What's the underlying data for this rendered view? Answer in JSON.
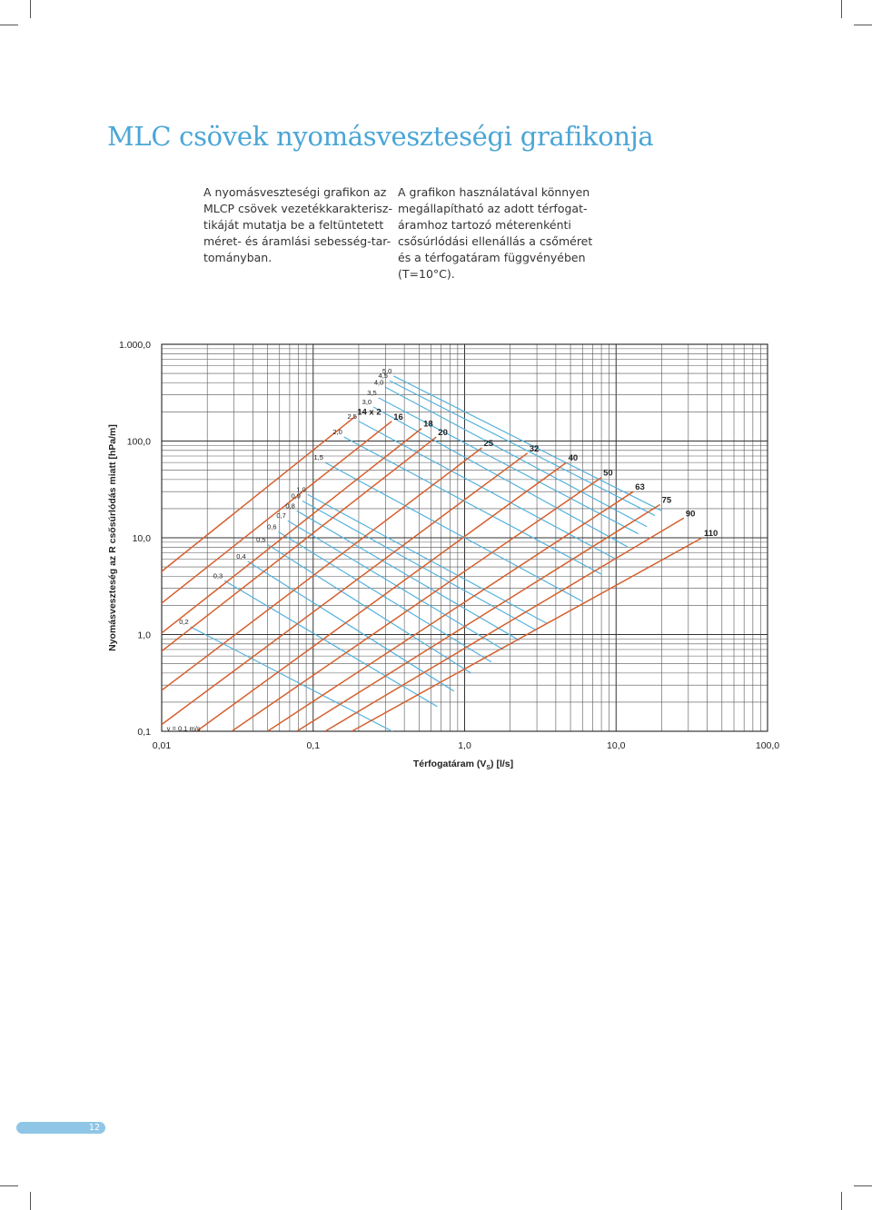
{
  "page": {
    "title": "MLC csövek nyomásveszteségi grafikonja",
    "intro_left": [
      "A nyomásveszteségi grafikon az",
      "MLCP csövek vezetékkarakterisz-",
      "tikáját mutatja be a feltüntetett",
      "méret- és áramlási sebesség-tar-",
      "tományban."
    ],
    "intro_right": [
      "A grafikon használatával könnyen",
      "megállapítható az adott térfogat-",
      "áramhoz tartozó méterenkénti",
      "csősúrlódási ellenállás a csőméret",
      "és a térfogatáram függvényében",
      "(T=10°C)."
    ],
    "page_number": "12"
  },
  "chart_data": {
    "type": "line",
    "title": "",
    "xlabel": "Térfogatáram (V",
    "xlabel_sub": "S",
    "xlabel_end": ") [l/s]",
    "ylabel": "Nyomásveszteség az R csősúrlódás miatt [hPa/m]",
    "x_scale": "log",
    "y_scale": "log",
    "xlim": [
      0.01,
      100
    ],
    "ylim": [
      0.1,
      1000
    ],
    "grid": true,
    "x_ticks": [
      0.01,
      0.1,
      1,
      10,
      100
    ],
    "x_tick_labels": [
      "0,01",
      "0,1",
      "1,0",
      "10,0",
      "100,0"
    ],
    "y_ticks": [
      0.1,
      1,
      10,
      100,
      1000
    ],
    "y_tick_labels": [
      "0,1",
      "1,0",
      "10,0",
      "100,0",
      "1.000,0"
    ],
    "pipe_color": "#d4602e",
    "velocity_color": "#55b2dd",
    "pipe_series": [
      {
        "name": "14 x 2",
        "points": [
          [
            0.00048,
            0.1
          ],
          [
            0.19,
            180
          ]
        ]
      },
      {
        "name": "16",
        "points": [
          [
            0.00085,
            0.1
          ],
          [
            0.33,
            160
          ]
        ]
      },
      {
        "name": "18",
        "points": [
          [
            0.0015,
            0.1
          ],
          [
            0.52,
            135
          ]
        ]
      },
      {
        "name": "20",
        "points": [
          [
            0.0021,
            0.1
          ],
          [
            0.65,
            110
          ]
        ]
      },
      {
        "name": "25",
        "points": [
          [
            0.0044,
            0.1
          ],
          [
            1.3,
            85
          ]
        ]
      },
      {
        "name": "32",
        "points": [
          [
            0.0087,
            0.1
          ],
          [
            2.6,
            75
          ]
        ]
      },
      {
        "name": "40",
        "points": [
          [
            0.017,
            0.1
          ],
          [
            4.7,
            60
          ]
        ]
      },
      {
        "name": "50",
        "points": [
          [
            0.029,
            0.1
          ],
          [
            8.0,
            42
          ]
        ]
      },
      {
        "name": "63",
        "points": [
          [
            0.05,
            0.1
          ],
          [
            13,
            30
          ]
        ]
      },
      {
        "name": "75",
        "points": [
          [
            0.078,
            0.1
          ],
          [
            19.5,
            22
          ]
        ]
      },
      {
        "name": "90",
        "points": [
          [
            0.12,
            0.1
          ],
          [
            28,
            16
          ]
        ]
      },
      {
        "name": "110",
        "points": [
          [
            0.18,
            0.1
          ],
          [
            37,
            10
          ]
        ]
      }
    ],
    "velocity_series": [
      {
        "name": "0,1",
        "points": [
          [
            0.0185,
            0.095
          ],
          [
            0.18,
            0.035
          ]
        ]
      },
      {
        "name": "0,2",
        "points": [
          [
            0.0155,
            1.2
          ],
          [
            0.4,
            0.086
          ]
        ]
      },
      {
        "name": "0,3",
        "points": [
          [
            0.026,
            3.6
          ],
          [
            0.66,
            0.18
          ]
        ]
      },
      {
        "name": "0,4",
        "points": [
          [
            0.037,
            5.7
          ],
          [
            0.85,
            0.26
          ]
        ]
      },
      {
        "name": "0,5",
        "points": [
          [
            0.05,
            8.5
          ],
          [
            1.1,
            0.4
          ]
        ]
      },
      {
        "name": "0,6",
        "points": [
          [
            0.059,
            11.5
          ],
          [
            1.5,
            0.52
          ]
        ]
      },
      {
        "name": "0,7",
        "points": [
          [
            0.068,
            15
          ],
          [
            1.8,
            0.7
          ]
        ]
      },
      {
        "name": "0,8",
        "points": [
          [
            0.078,
            19
          ],
          [
            2.3,
            0.87
          ]
        ]
      },
      {
        "name": "0,9",
        "points": [
          [
            0.085,
            24
          ],
          [
            3.0,
            1.1
          ]
        ]
      },
      {
        "name": "1,0",
        "points": [
          [
            0.092,
            28
          ],
          [
            3.5,
            1.3
          ]
        ]
      },
      {
        "name": "1,5",
        "points": [
          [
            0.12,
            60
          ],
          [
            6.0,
            2.2
          ]
        ]
      },
      {
        "name": "2,0",
        "points": [
          [
            0.16,
            110
          ],
          [
            8.0,
            4.2
          ]
        ]
      },
      {
        "name": "2,5",
        "points": [
          [
            0.2,
            160
          ],
          [
            10,
            6
          ]
        ]
      },
      {
        "name": "3,0",
        "points": [
          [
            0.25,
            225
          ],
          [
            12,
            8
          ]
        ]
      },
      {
        "name": "3,5",
        "points": [
          [
            0.27,
            280
          ],
          [
            14,
            11
          ]
        ]
      },
      {
        "name": "4,0",
        "points": [
          [
            0.3,
            360
          ],
          [
            16,
            13
          ]
        ]
      },
      {
        "name": "4,5",
        "points": [
          [
            0.32,
            420
          ],
          [
            18,
            17
          ]
        ]
      },
      {
        "name": "5,0",
        "points": [
          [
            0.34,
            470
          ],
          [
            20,
            19
          ]
        ]
      }
    ],
    "velocity_label_prefix": "v = 0,1 m/s"
  }
}
